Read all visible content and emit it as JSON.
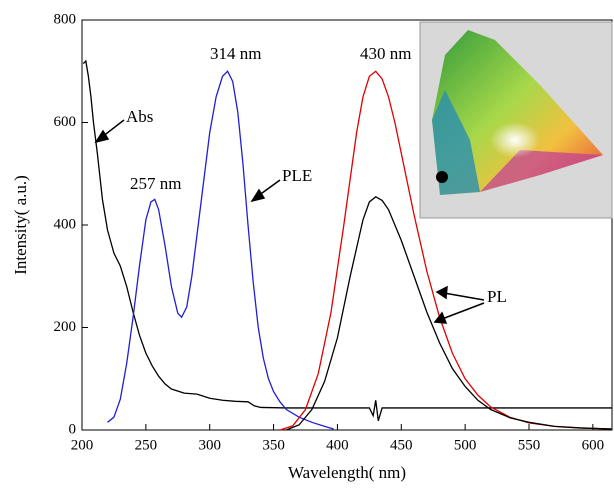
{
  "chart_data": {
    "type": "line",
    "xlabel": "Wavelength( nm)",
    "ylabel": "Intensity( a.u.)",
    "xlim": [
      200,
      615
    ],
    "ylim": [
      0,
      800
    ],
    "xticks": [
      200,
      250,
      300,
      350,
      400,
      450,
      500,
      550,
      600
    ],
    "yticks": [
      0,
      200,
      400,
      600,
      800
    ],
    "annotations": [
      "Abs",
      "257 nm",
      "314 nm",
      "430 nm",
      "PLE",
      "PL"
    ],
    "series": [
      {
        "color": "#000000",
        "x": [
          201,
          203,
          205,
          207,
          209,
          212,
          216,
          220,
          225,
          230,
          235,
          240,
          245,
          250,
          255,
          260,
          265,
          270,
          280,
          290,
          300,
          310,
          320,
          330,
          335,
          340,
          360,
          400,
          425,
          428,
          430,
          432,
          435,
          450,
          500,
          550,
          615
        ],
        "values": [
          715,
          720,
          690,
          650,
          600,
          540,
          450,
          390,
          345,
          320,
          280,
          230,
          185,
          150,
          125,
          105,
          90,
          80,
          72,
          70,
          62,
          58,
          56,
          55,
          47,
          44,
          43,
          43,
          43,
          28,
          58,
          18,
          43,
          43,
          43,
          43,
          43
        ]
      },
      {
        "color": "#1f1fd6",
        "x": [
          220,
          225,
          230,
          235,
          240,
          245,
          250,
          254,
          257,
          260,
          265,
          270,
          275,
          278,
          282,
          286,
          290,
          295,
          300,
          305,
          310,
          314,
          318,
          322,
          326,
          330,
          334,
          338,
          342,
          346,
          350,
          355,
          360,
          370,
          380,
          390,
          397
        ],
        "values": [
          15,
          25,
          60,
          130,
          220,
          320,
          410,
          445,
          450,
          430,
          360,
          280,
          228,
          220,
          240,
          300,
          380,
          480,
          580,
          650,
          690,
          700,
          680,
          620,
          520,
          400,
          290,
          200,
          140,
          100,
          75,
          55,
          40,
          25,
          15,
          7,
          2
        ]
      },
      {
        "color": "#e00000",
        "x": [
          355,
          365,
          375,
          385,
          395,
          405,
          415,
          420,
          425,
          430,
          435,
          440,
          445,
          450,
          460,
          470,
          480,
          490,
          500,
          510,
          520,
          535,
          550,
          570,
          590,
          615
        ],
        "values": [
          0,
          8,
          40,
          110,
          230,
          400,
          580,
          650,
          690,
          700,
          685,
          650,
          600,
          540,
          420,
          310,
          220,
          150,
          100,
          68,
          45,
          25,
          14,
          7,
          4,
          2
        ]
      },
      {
        "color": "#000000",
        "x": [
          360,
          370,
          380,
          390,
          400,
          410,
          420,
          425,
          430,
          435,
          440,
          450,
          460,
          470,
          480,
          490,
          500,
          510,
          520,
          535,
          550,
          570,
          590,
          615
        ],
        "values": [
          0,
          10,
          40,
          95,
          180,
          300,
          410,
          445,
          455,
          448,
          430,
          370,
          300,
          230,
          170,
          120,
          85,
          58,
          40,
          24,
          15,
          7,
          4,
          2
        ]
      }
    ]
  }
}
